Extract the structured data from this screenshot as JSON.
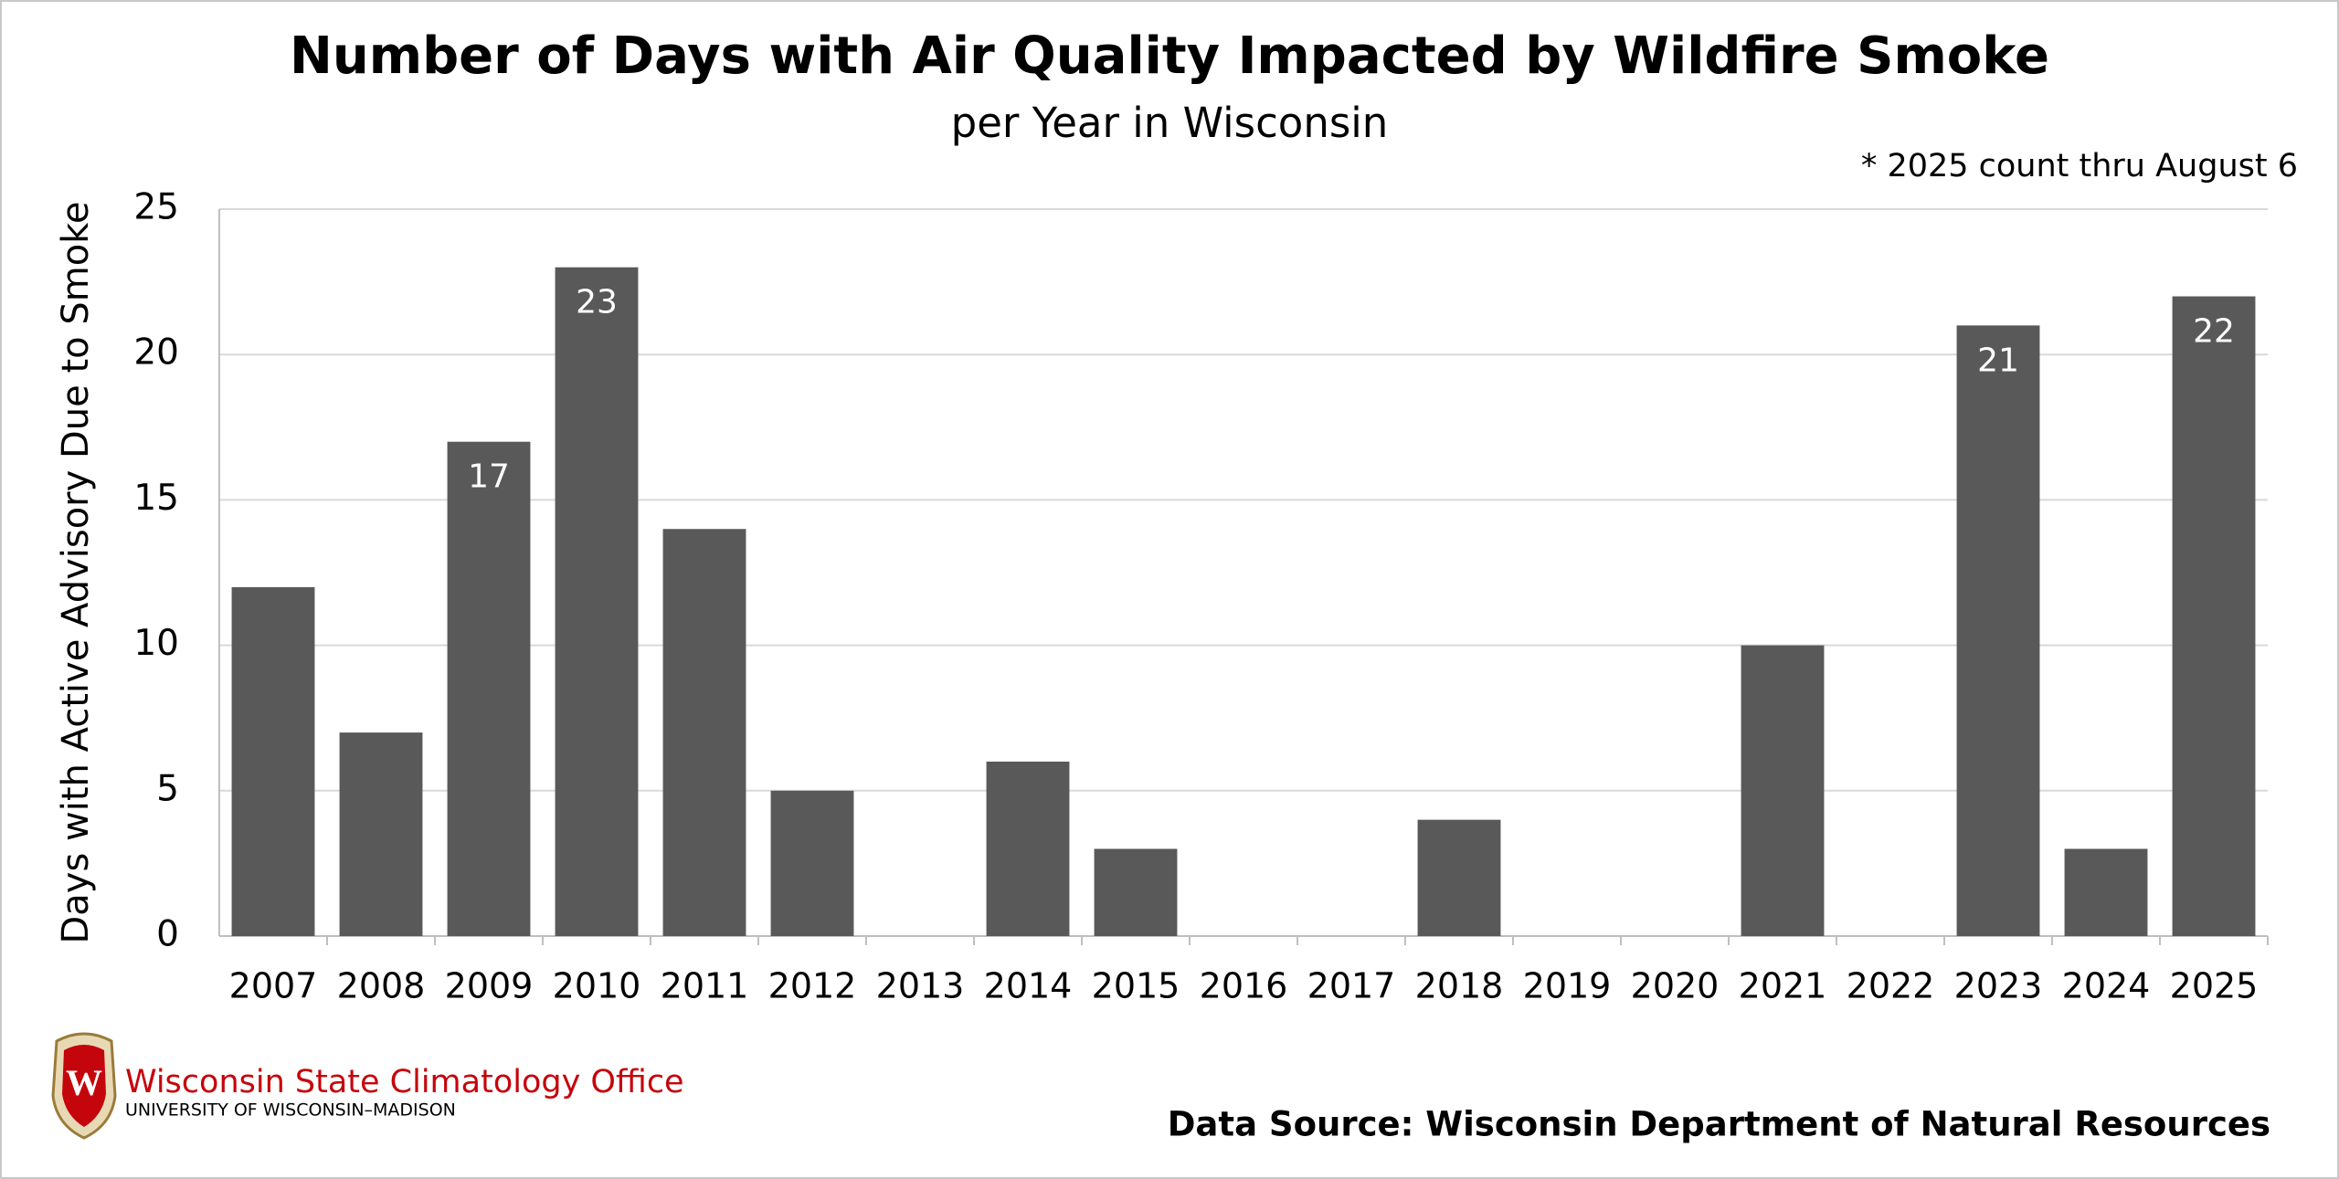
{
  "chart_data": {
    "type": "bar",
    "title": "Number of Days with Air Quality Impacted by Wildfire Smoke",
    "subtitle": "per Year in Wisconsin",
    "note": "* 2025 count thru August 6",
    "y_label": "Days with Active Advisory Due to Smoke",
    "source": "Data Source: Wisconsin Department of Natural Resources",
    "logo": {
      "letter": "W",
      "name": "Wisconsin State Climatology Office",
      "university": "UNIVERSITY OF WISCONSIN–MADISON"
    },
    "categories": [
      "2007",
      "2008",
      "2009",
      "2010",
      "2011",
      "2012",
      "2013",
      "2014",
      "2015",
      "2016",
      "2017",
      "2018",
      "2019",
      "2020",
      "2021",
      "2022",
      "2023",
      "2024",
      "2025"
    ],
    "values": [
      12,
      7,
      17,
      23,
      14,
      5,
      0,
      6,
      3,
      0,
      0,
      4,
      0,
      0,
      10,
      0,
      21,
      3,
      22
    ],
    "value_labels": [
      null,
      null,
      "17",
      "23",
      null,
      null,
      null,
      null,
      null,
      null,
      null,
      null,
      null,
      null,
      null,
      null,
      "21",
      null,
      "22"
    ],
    "color": "#595959",
    "ylim": [
      0,
      25
    ],
    "yticks": [
      0,
      5,
      10,
      15,
      20,
      25
    ],
    "grid": true
  }
}
